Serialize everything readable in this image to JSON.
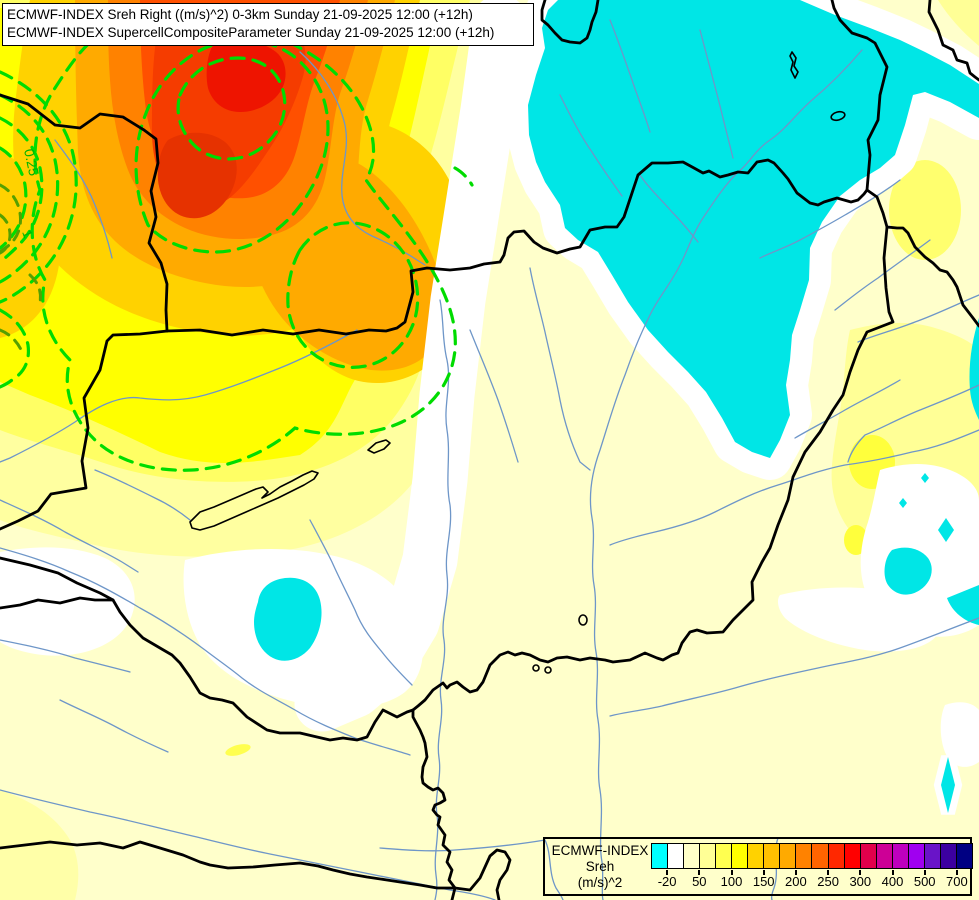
{
  "header": {
    "line1": "ECMWF-INDEX Sreh Right ((m/s)^2) 0-3km Sunday 21-09-2025 12:00 (+12h)",
    "line2": "ECMWF-INDEX SupercellCompositeParameter Sunday 21-09-2025 12:00 (+12h)"
  },
  "legend": {
    "source_label": "ECMWF-INDEX",
    "variable_label": "Sreh",
    "units_label": "(m/s)^2",
    "colorbar": {
      "colors": [
        "#00FFFF",
        "#FFFFFF",
        "#FFFFC8",
        "#FFFF96",
        "#FFFF50",
        "#FFFF00",
        "#FFD200",
        "#FFC000",
        "#FFAA00",
        "#FF8200",
        "#FF6400",
        "#FF2800",
        "#FF0000",
        "#E1004B",
        "#CD0096",
        "#BE00BE",
        "#A000F0",
        "#6914C8",
        "#3C00A0",
        "#000082"
      ],
      "tick_labels": [
        "-20",
        "50",
        "100",
        "150",
        "200",
        "250",
        "300",
        "400",
        "500",
        "700"
      ]
    }
  },
  "map": {
    "contour_labels": [
      "0.25",
      "1"
    ],
    "colors": {
      "background": "#FFFFCB",
      "negative_fill": "#00E6E6",
      "near_zero_fill": "#FFFFFF",
      "river": "#6E96C8",
      "border": "#000000",
      "scp_contour": "#00DC00",
      "scp_contour_secondary": "#55A000"
    }
  }
}
